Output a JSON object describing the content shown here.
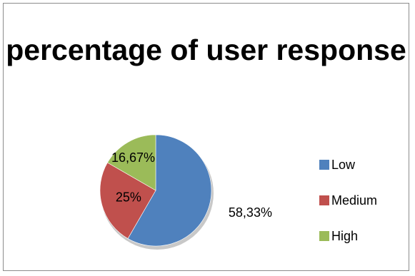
{
  "chart_data": {
    "type": "pie",
    "title": "percentage of user response",
    "categories": [
      "Low",
      "Medium",
      "High"
    ],
    "values": [
      58.33,
      25,
      16.67
    ],
    "data_labels": [
      "58,33%",
      "25%",
      "16,67%"
    ],
    "colors": [
      "#4f81bd",
      "#c0504d",
      "#9bbb59"
    ],
    "legend_position": "right",
    "start_angle": "top, clockwise"
  }
}
